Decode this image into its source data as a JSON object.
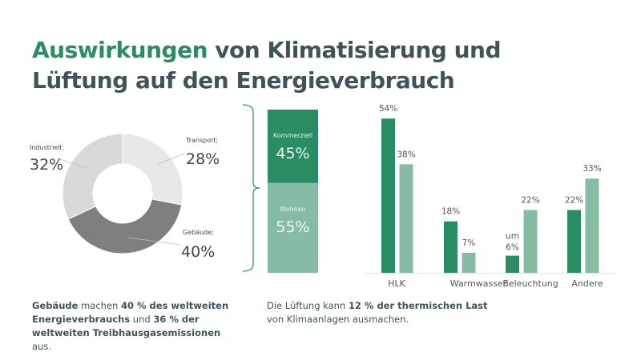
{
  "title": {
    "highlight": "Auswirkungen",
    "rest_line1": " von Klimatisierung und",
    "line2": "Lüftung auf den Energieverbrauch"
  },
  "colors": {
    "accent": "#2a8c62",
    "accent_light": "#86bca3",
    "title_dark": "#3f5358"
  },
  "chart_data": [
    {
      "type": "pie",
      "variant": "donut",
      "slices": [
        {
          "label": "Transport;",
          "value": 28,
          "value_label": "28%",
          "color": "#e8e8e8"
        },
        {
          "label": "Gebäude;",
          "value": 40,
          "value_label": "40%",
          "color": "#7f7f7f"
        },
        {
          "label": "Industriell;",
          "value": 32,
          "value_label": "32%",
          "color": "#d9d9d9"
        }
      ]
    },
    {
      "type": "bar",
      "variant": "stacked",
      "segments": [
        {
          "label": "Kommerziell",
          "value": 45,
          "value_label": "45%",
          "color": "#2a8c62"
        },
        {
          "label": "Wohnen",
          "value": 55,
          "value_label": "55%",
          "color": "#86bca3"
        }
      ]
    },
    {
      "type": "bar",
      "categories": [
        "HLK",
        "Warmwasser",
        "Beleuchtung",
        "Andere"
      ],
      "series": [
        {
          "values": [
            54,
            18,
            6,
            22
          ],
          "labels": [
            "54%",
            "18%",
            "um 6%",
            "22%"
          ],
          "color": "#2a8c62"
        },
        {
          "values": [
            38,
            7,
            22,
            33
          ],
          "labels": [
            "38%",
            "7%",
            "22%",
            "33%"
          ],
          "color": "#86bca3"
        }
      ],
      "grid": false
    }
  ],
  "captions": {
    "left": [
      {
        "t": "Gebäude",
        "b": true
      },
      {
        "t": " machen ",
        "b": false
      },
      {
        "t": "40 % des weltweiten Energieverbrauchs",
        "b": true
      },
      {
        "t": "  und ",
        "b": false
      },
      {
        "t": "36 % der weltweiten Treibhausgasemissionen",
        "b": true
      },
      {
        "t": " aus.",
        "b": false
      }
    ],
    "right": [
      {
        "t": "Die Lüftung kann ",
        "b": false
      },
      {
        "t": "12 % der thermischen Last",
        "b": true
      },
      {
        "t": " von Klimaanlagen ausmachen.",
        "b": false
      }
    ]
  }
}
